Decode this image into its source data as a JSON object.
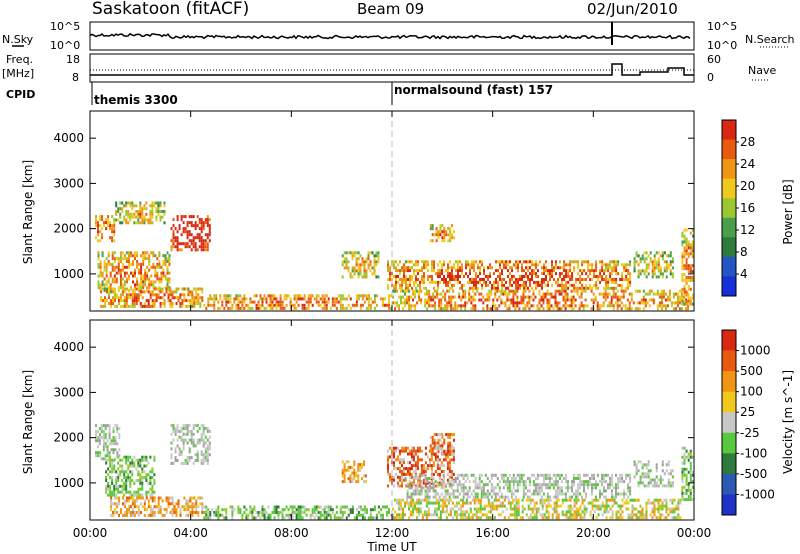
{
  "header": {
    "station": "Saskatoon (fitACF)",
    "beam": "Beam 09",
    "date": "02/Jun/2010"
  },
  "meta_panel": {
    "left_labels": [
      "N.Sky",
      "Freq.",
      "[MHz]",
      "CPID"
    ],
    "right_labels": [
      "N.Search",
      "Nave"
    ],
    "nsky_ticks": [
      "10^5",
      "10^0"
    ],
    "nsearch_ticks": [
      "10^5",
      "10^0"
    ],
    "freq_ticks": [
      "18",
      "8"
    ],
    "nave_ticks": [
      "60",
      "0"
    ],
    "cpid_entries": [
      {
        "label": "themis 3300",
        "start_hour": 0.0
      },
      {
        "label": "normalsound (fast) 157",
        "start_hour": 12.0
      }
    ]
  },
  "chart_data": [
    {
      "type": "heatmap",
      "title": "",
      "xlabel": "",
      "ylabel": "Slant Range [km]",
      "x_range_hours": [
        0,
        24
      ],
      "ylim": [
        180,
        4600
      ],
      "yticks": [
        "1000",
        "2000",
        "3000",
        "4000"
      ],
      "colorbar": {
        "label": "Power [dB]",
        "ticks": [
          "28",
          "24",
          "20",
          "16",
          "12",
          "8",
          "4"
        ],
        "colors": [
          "#1530d8",
          "#2554c4",
          "#2e7a3c",
          "#4aa04a",
          "#9ac832",
          "#f0c81e",
          "#f09614",
          "#e85a0f",
          "#d82814"
        ]
      },
      "echo_regions": [
        {
          "h0": 0.2,
          "h1": 1.0,
          "r0": 1700,
          "r1": 2300,
          "level": 0.55
        },
        {
          "h0": 0.3,
          "h1": 3.2,
          "r0": 600,
          "r1": 1500,
          "level": 0.5
        },
        {
          "h0": 1.0,
          "h1": 3.0,
          "r0": 2100,
          "r1": 2600,
          "level": 0.4
        },
        {
          "h0": 3.2,
          "h1": 4.8,
          "r0": 1500,
          "r1": 2300,
          "level": 0.8
        },
        {
          "h0": 0.4,
          "h1": 4.5,
          "r0": 250,
          "r1": 700,
          "level": 0.55
        },
        {
          "h0": 4.5,
          "h1": 12.0,
          "r0": 200,
          "r1": 550,
          "level": 0.55
        },
        {
          "h0": 10.0,
          "h1": 11.5,
          "r0": 900,
          "r1": 1500,
          "level": 0.4
        },
        {
          "h0": 11.8,
          "h1": 21.5,
          "r0": 650,
          "r1": 1300,
          "level": 0.6
        },
        {
          "h0": 13.5,
          "h1": 14.5,
          "r0": 1700,
          "r1": 2100,
          "level": 0.5
        },
        {
          "h0": 12.0,
          "h1": 23.8,
          "r0": 200,
          "r1": 650,
          "level": 0.55
        },
        {
          "h0": 21.6,
          "h1": 23.2,
          "r0": 900,
          "r1": 1500,
          "level": 0.35
        },
        {
          "h0": 23.5,
          "h1": 24.0,
          "r0": 300,
          "r1": 2000,
          "level": 0.5
        }
      ]
    },
    {
      "type": "heatmap",
      "title": "",
      "xlabel": "Time UT",
      "ylabel": "Slant Range [km]",
      "x_range_hours": [
        0,
        24
      ],
      "xticks": [
        "00:00",
        "04:00",
        "08:00",
        "12:00",
        "16:00",
        "20:00",
        "00:00"
      ],
      "ylim": [
        180,
        4600
      ],
      "yticks": [
        "1000",
        "2000",
        "3000",
        "4000"
      ],
      "colorbar": {
        "label": "Velocity [m s^-1]",
        "ticks": [
          "1000",
          "500",
          "100",
          "25",
          "-25",
          "-100",
          "-500",
          "-1000"
        ],
        "colors": [
          "#1e32c8",
          "#2a5ab4",
          "#2e7a3c",
          "#5ac83c",
          "#c8c8c8",
          "#f0c81e",
          "#f09614",
          "#e85a0f",
          "#d82814"
        ]
      },
      "echo_regions": [
        {
          "h0": 0.2,
          "h1": 1.2,
          "r0": 1500,
          "r1": 2300,
          "vel": "gray"
        },
        {
          "h0": 0.6,
          "h1": 2.6,
          "r0": 700,
          "r1": 1600,
          "vel": "green"
        },
        {
          "h0": 3.2,
          "h1": 4.8,
          "r0": 1400,
          "r1": 2300,
          "vel": "gray"
        },
        {
          "h0": 0.8,
          "h1": 4.5,
          "r0": 250,
          "r1": 700,
          "vel": "orange"
        },
        {
          "h0": 4.5,
          "h1": 12.0,
          "r0": 200,
          "r1": 500,
          "vel": "green"
        },
        {
          "h0": 10.0,
          "h1": 11.0,
          "r0": 1000,
          "r1": 1500,
          "vel": "orange"
        },
        {
          "h0": 11.8,
          "h1": 14.5,
          "r0": 900,
          "r1": 1800,
          "vel": "red"
        },
        {
          "h0": 13.5,
          "h1": 14.5,
          "r0": 1600,
          "r1": 2100,
          "vel": "red"
        },
        {
          "h0": 12.5,
          "h1": 21.5,
          "r0": 650,
          "r1": 1200,
          "vel": "gray"
        },
        {
          "h0": 12.0,
          "h1": 23.5,
          "r0": 200,
          "r1": 650,
          "vel": "yellow"
        },
        {
          "h0": 21.6,
          "h1": 23.2,
          "r0": 900,
          "r1": 1500,
          "vel": "gray"
        },
        {
          "h0": 23.5,
          "h1": 24.0,
          "r0": 600,
          "r1": 1800,
          "vel": "green"
        }
      ]
    }
  ]
}
